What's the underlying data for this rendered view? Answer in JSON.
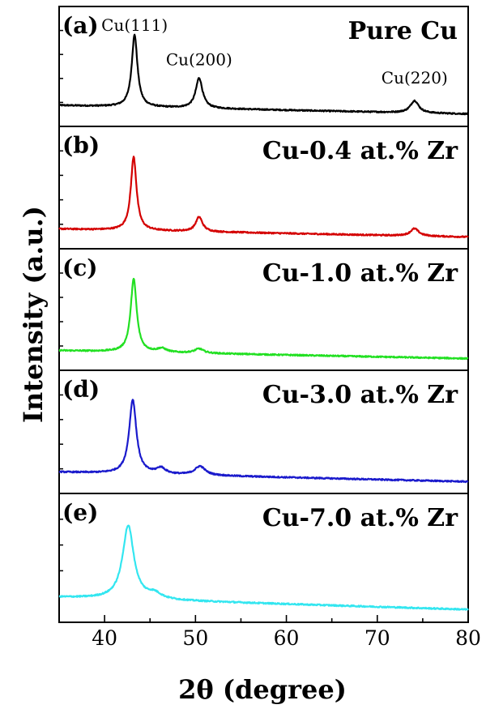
{
  "chart_data": {
    "type": "line",
    "xlabel": "2θ (degree)",
    "ylabel": "Intensity (a.u.)",
    "xlim": [
      35,
      80
    ],
    "x_ticks": [
      "40",
      "50",
      "60",
      "70",
      "80"
    ],
    "x_tick_values": [
      40,
      50,
      60,
      70,
      80
    ],
    "panels": [
      {
        "letter": "(a)",
        "title": "Pure Cu",
        "color": "#000000",
        "baseline": 0.18,
        "baseline_end": 0.06,
        "peaks": [
          {
            "x": 43.3,
            "height": 1.0,
            "width": 0.38
          },
          {
            "x": 50.4,
            "height": 0.42,
            "width": 0.45
          },
          {
            "x": 74.1,
            "height": 0.17,
            "width": 0.55
          }
        ],
        "annotations": [
          {
            "text": "Cu(111)",
            "x": 43.3
          },
          {
            "text": "Cu(200)",
            "x": 50.4
          },
          {
            "text": "Cu(220)",
            "x": 74.1
          }
        ]
      },
      {
        "letter": "(b)",
        "title": "Cu-0.4 at.% Zr",
        "color": "#d40000",
        "baseline": 0.16,
        "baseline_end": 0.05,
        "peaks": [
          {
            "x": 43.2,
            "height": 1.0,
            "width": 0.38
          },
          {
            "x": 50.4,
            "height": 0.2,
            "width": 0.45
          },
          {
            "x": 74.1,
            "height": 0.1,
            "width": 0.55
          }
        ],
        "annotations": []
      },
      {
        "letter": "(c)",
        "title": "Cu-1.0 at.% Zr",
        "color": "#22e022",
        "baseline": 0.16,
        "baseline_end": 0.05,
        "peaks": [
          {
            "x": 43.2,
            "height": 1.0,
            "width": 0.4
          },
          {
            "x": 46.3,
            "height": 0.05,
            "width": 0.6
          },
          {
            "x": 50.4,
            "height": 0.06,
            "width": 0.6
          }
        ],
        "annotations": []
      },
      {
        "letter": "(d)",
        "title": "Cu-3.0 at.% Zr",
        "color": "#1a1acc",
        "baseline": 0.18,
        "baseline_end": 0.05,
        "peaks": [
          {
            "x": 43.1,
            "height": 1.0,
            "width": 0.48
          },
          {
            "x": 46.2,
            "height": 0.08,
            "width": 0.6
          },
          {
            "x": 50.5,
            "height": 0.12,
            "width": 0.7
          }
        ],
        "annotations": []
      },
      {
        "letter": "(e)",
        "title": "Cu-7.0 at.% Zr",
        "color": "#33e6f0",
        "baseline": 0.22,
        "baseline_end": 0.06,
        "peaks": [
          {
            "x": 42.6,
            "height": 0.95,
            "width": 0.75
          },
          {
            "x": 45.5,
            "height": 0.07,
            "width": 0.9
          }
        ],
        "annotations": []
      }
    ]
  }
}
